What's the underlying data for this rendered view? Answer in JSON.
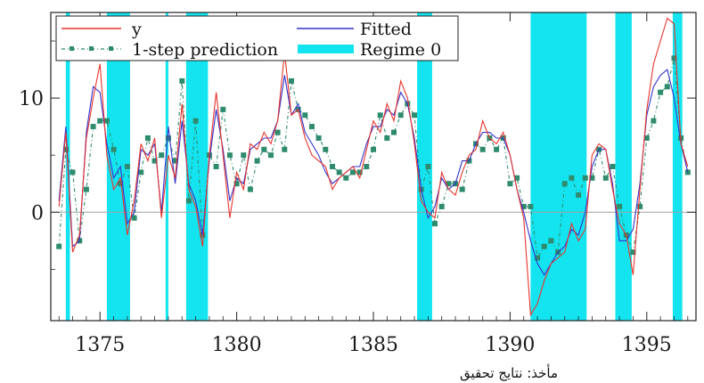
{
  "chart_data": {
    "type": "line",
    "title": "",
    "xlabel": "",
    "ylabel": "",
    "xlim": [
      1373.2,
      1396.8
    ],
    "ylim": [
      -9.5,
      17.5
    ],
    "grid": false,
    "zero_line": true,
    "x_ticks": [
      1375,
      1380,
      1385,
      1390,
      1395
    ],
    "y_ticks": [
      0,
      10
    ],
    "legend_position": "top-left",
    "legend": {
      "y": "y",
      "fitted": "Fitted",
      "prediction": "1-step prediction",
      "regime": "Regime 0"
    },
    "colors": {
      "y": "#e8352e",
      "fitted": "#3333cc",
      "prediction": "#2e8b6e",
      "regime": "#14e4ef",
      "axis": "#222222",
      "zero_line": "#a0a0a0"
    },
    "regime_0_intervals": [
      [
        1373.75,
        1373.9
      ],
      [
        1375.25,
        1376.1
      ],
      [
        1377.4,
        1377.5
      ],
      [
        1378.15,
        1378.95
      ],
      [
        1386.6,
        1387.15
      ],
      [
        1390.75,
        1392.8
      ],
      [
        1393.85,
        1394.45
      ],
      [
        1395.95,
        1396.3
      ]
    ],
    "series": [
      {
        "name": "y",
        "x": [
          1373.5,
          1373.75,
          1374,
          1374.25,
          1374.5,
          1374.75,
          1375,
          1375.25,
          1375.5,
          1375.75,
          1376,
          1376.25,
          1376.5,
          1376.75,
          1377,
          1377.25,
          1377.5,
          1377.75,
          1378,
          1378.25,
          1378.5,
          1378.75,
          1379,
          1379.25,
          1379.5,
          1379.75,
          1380,
          1380.25,
          1380.5,
          1380.75,
          1381,
          1381.25,
          1381.5,
          1381.75,
          1382,
          1382.25,
          1382.5,
          1382.75,
          1383,
          1383.25,
          1383.5,
          1383.75,
          1384,
          1384.25,
          1384.5,
          1384.75,
          1385,
          1385.25,
          1385.5,
          1385.75,
          1386,
          1386.25,
          1386.5,
          1386.75,
          1387,
          1387.25,
          1387.5,
          1387.75,
          1388,
          1388.25,
          1388.5,
          1388.75,
          1389,
          1389.25,
          1389.5,
          1389.75,
          1390,
          1390.25,
          1390.5,
          1390.75,
          1391,
          1391.25,
          1391.5,
          1391.75,
          1392,
          1392.25,
          1392.5,
          1392.75,
          1393,
          1393.25,
          1393.5,
          1393.75,
          1394,
          1394.25,
          1394.5,
          1394.75,
          1395,
          1395.25,
          1395.5,
          1395.75,
          1396,
          1396.25,
          1396.5
        ],
        "y": [
          0.5,
          7.0,
          -3.5,
          -2.0,
          6.5,
          10.0,
          13.0,
          5.0,
          2.0,
          3.0,
          -2.0,
          1.0,
          6.0,
          4.5,
          6.5,
          -0.5,
          5.0,
          3.0,
          9.5,
          2.0,
          0.5,
          -3.0,
          5.0,
          10.5,
          5.0,
          -0.5,
          3.5,
          2.0,
          6.0,
          5.5,
          7.0,
          6.0,
          8.0,
          14.0,
          8.5,
          9.0,
          6.5,
          5.0,
          4.5,
          4.0,
          2.0,
          3.0,
          3.5,
          4.0,
          3.0,
          5.5,
          8.0,
          7.0,
          9.5,
          8.0,
          11.5,
          10.0,
          6.0,
          1.0,
          0.0,
          -0.5,
          3.5,
          2.0,
          1.5,
          3.5,
          5.0,
          5.5,
          8.0,
          6.5,
          6.0,
          7.0,
          5.0,
          2.0,
          -0.5,
          -9.0,
          -8.0,
          -6.0,
          -4.5,
          -4.0,
          -3.5,
          -1.0,
          -2.5,
          -1.5,
          5.0,
          6.0,
          5.5,
          2.0,
          -1.0,
          -2.0,
          -5.5,
          2.0,
          9.0,
          13.0,
          15.0,
          17.0,
          16.5,
          6.0,
          4.0
        ]
      },
      {
        "name": "Fitted",
        "x": [
          1373.5,
          1373.75,
          1374,
          1374.25,
          1374.5,
          1374.75,
          1375,
          1375.25,
          1375.5,
          1375.75,
          1376,
          1376.25,
          1376.5,
          1376.75,
          1377,
          1377.25,
          1377.5,
          1377.75,
          1378,
          1378.25,
          1378.5,
          1378.75,
          1379,
          1379.25,
          1379.5,
          1379.75,
          1380,
          1380.25,
          1380.5,
          1380.75,
          1381,
          1381.25,
          1381.5,
          1381.75,
          1382,
          1382.25,
          1382.5,
          1382.75,
          1383,
          1383.25,
          1383.5,
          1383.75,
          1384,
          1384.25,
          1384.5,
          1384.75,
          1385,
          1385.25,
          1385.5,
          1385.75,
          1386,
          1386.25,
          1386.5,
          1386.75,
          1387,
          1387.25,
          1387.5,
          1387.75,
          1388,
          1388.25,
          1388.5,
          1388.75,
          1389,
          1389.25,
          1389.5,
          1389.75,
          1390,
          1390.25,
          1390.5,
          1390.75,
          1391,
          1391.25,
          1391.5,
          1391.75,
          1392,
          1392.25,
          1392.5,
          1392.75,
          1393,
          1393.25,
          1393.5,
          1393.75,
          1394,
          1394.25,
          1394.5,
          1394.75,
          1395,
          1395.25,
          1395.5,
          1395.75,
          1396,
          1396.25,
          1396.5
        ],
        "y": [
          1.0,
          7.5,
          -3.0,
          -2.5,
          7.0,
          11.0,
          10.5,
          6.0,
          3.0,
          4.0,
          -1.0,
          0.0,
          5.5,
          5.0,
          6.0,
          0.0,
          7.5,
          2.5,
          8.0,
          2.5,
          1.0,
          -2.0,
          4.5,
          9.0,
          5.5,
          1.0,
          3.0,
          2.5,
          5.5,
          6.0,
          6.5,
          6.5,
          8.0,
          12.0,
          8.5,
          9.5,
          7.0,
          6.0,
          5.0,
          3.5,
          2.5,
          3.0,
          3.5,
          4.0,
          4.0,
          6.0,
          7.5,
          7.5,
          9.0,
          8.5,
          10.5,
          9.5,
          6.5,
          2.0,
          -0.5,
          0.5,
          3.0,
          2.0,
          2.5,
          4.5,
          4.5,
          6.0,
          7.0,
          7.0,
          6.5,
          6.5,
          5.0,
          2.0,
          0.0,
          -2.5,
          -4.5,
          -5.5,
          -4.5,
          -3.5,
          -3.0,
          -1.5,
          -2.0,
          0.0,
          4.0,
          5.5,
          5.5,
          2.5,
          -2.5,
          -2.5,
          -1.5,
          2.5,
          8.5,
          11.0,
          12.0,
          12.5,
          10.0,
          6.0,
          3.5
        ]
      },
      {
        "name": "1-step prediction",
        "x": [
          1373.5,
          1373.75,
          1374,
          1374.25,
          1374.5,
          1374.75,
          1375,
          1375.25,
          1375.5,
          1375.75,
          1376,
          1376.25,
          1376.5,
          1376.75,
          1377,
          1377.25,
          1377.5,
          1377.75,
          1378,
          1378.25,
          1378.5,
          1378.75,
          1379,
          1379.25,
          1379.5,
          1379.75,
          1380,
          1380.25,
          1380.5,
          1380.75,
          1381,
          1381.25,
          1381.5,
          1381.75,
          1382,
          1382.25,
          1382.5,
          1382.75,
          1383,
          1383.25,
          1383.5,
          1383.75,
          1384,
          1384.25,
          1384.5,
          1384.75,
          1385,
          1385.25,
          1385.5,
          1385.75,
          1386,
          1386.25,
          1386.5,
          1386.75,
          1387,
          1387.25,
          1387.5,
          1387.75,
          1388,
          1388.25,
          1388.5,
          1388.75,
          1389,
          1389.25,
          1389.5,
          1389.75,
          1390,
          1390.25,
          1390.5,
          1390.75,
          1391,
          1391.25,
          1391.5,
          1391.75,
          1392,
          1392.25,
          1392.5,
          1392.75,
          1393,
          1393.25,
          1393.5,
          1393.75,
          1394,
          1394.25,
          1394.5,
          1394.75,
          1395,
          1395.25,
          1395.5,
          1395.75,
          1396,
          1396.25,
          1396.5
        ],
        "y": [
          -3.0,
          5.5,
          3.5,
          -2.5,
          2.0,
          7.5,
          8.0,
          8.0,
          5.5,
          2.5,
          4.0,
          -0.5,
          3.5,
          6.5,
          4.5,
          5.0,
          6.5,
          4.5,
          11.5,
          1.0,
          8.0,
          -2.0,
          5.0,
          4.0,
          9.0,
          5.0,
          2.5,
          5.0,
          2.0,
          4.5,
          5.5,
          5.0,
          7.0,
          5.5,
          11.5,
          9.0,
          8.5,
          7.5,
          6.5,
          5.5,
          4.0,
          3.5,
          3.0,
          3.5,
          3.5,
          4.0,
          5.5,
          8.5,
          6.5,
          7.0,
          8.5,
          9.5,
          8.5,
          2.0,
          4.0,
          -1.0,
          0.5,
          2.5,
          2.5,
          2.0,
          4.5,
          6.0,
          5.5,
          6.5,
          5.5,
          6.5,
          2.5,
          3.0,
          0.5,
          0.5,
          -4.0,
          -3.0,
          -2.5,
          -3.5,
          2.5,
          3.0,
          1.5,
          3.0,
          3.0,
          5.5,
          3.0,
          4.0,
          0.5,
          -2.0,
          -3.5,
          0.5,
          6.5,
          8.0,
          10.5,
          11.0,
          13.5,
          6.5,
          3.5
        ]
      }
    ]
  },
  "source_note": "مأخذ: نتایج تحقیق"
}
